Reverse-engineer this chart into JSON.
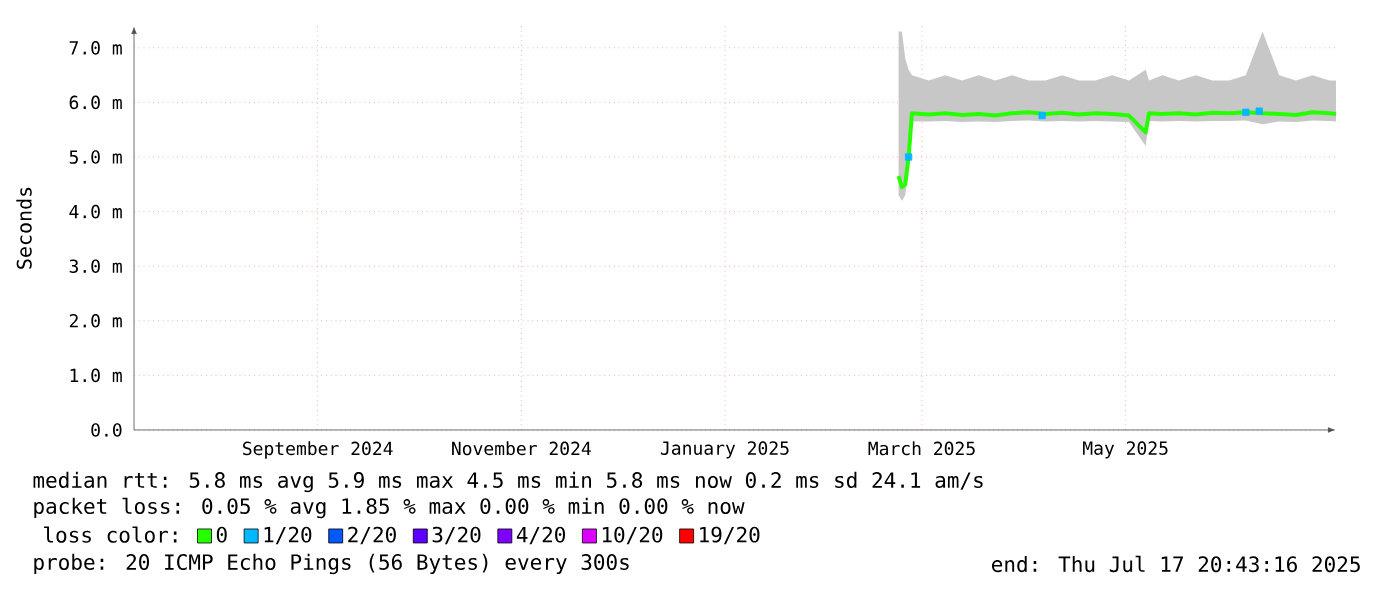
{
  "chart_data": {
    "type": "line",
    "ylabel": "Seconds",
    "legend_title": "loss color:",
    "legend": "bottom",
    "grid": true,
    "xlim": [
      "2024-07-22",
      "2025-07-17"
    ],
    "xticks": [
      {
        "value": "2024-09-15",
        "label": "September 2024"
      },
      {
        "value": "2024-11-15",
        "label": "November 2024"
      },
      {
        "value": "2025-01-15",
        "label": "January 2025"
      },
      {
        "value": "2025-03-15",
        "label": "March 2025"
      },
      {
        "value": "2025-05-15",
        "label": "May 2025"
      }
    ],
    "ylim": [
      0,
      7.4
    ],
    "yticks": [
      {
        "value": 0,
        "label": "0.0"
      },
      {
        "value": 1,
        "label": "1.0 m"
      },
      {
        "value": 2,
        "label": "2.0 m"
      },
      {
        "value": 3,
        "label": "3.0 m"
      },
      {
        "value": 4,
        "label": "4.0 m"
      },
      {
        "value": 5,
        "label": "5.0 m"
      },
      {
        "value": 6,
        "label": "6.0 m"
      },
      {
        "value": 7,
        "label": "7.0 m"
      }
    ],
    "series": [
      {
        "name": "0",
        "color": "#26ff00",
        "marker": "none",
        "line_style": "solid",
        "x": [
          "2025-03-08",
          "2025-03-09",
          "2025-03-10",
          "2025-03-11",
          "2025-03-12",
          "2025-03-17",
          "2025-03-22",
          "2025-03-27",
          "2025-04-01",
          "2025-04-06",
          "2025-04-11",
          "2025-04-16",
          "2025-04-21",
          "2025-04-26",
          "2025-05-01",
          "2025-05-06",
          "2025-05-11",
          "2025-05-16",
          "2025-05-21",
          "2025-05-22",
          "2025-05-26",
          "2025-05-31",
          "2025-06-05",
          "2025-06-10",
          "2025-06-15",
          "2025-06-20",
          "2025-06-25",
          "2025-06-30",
          "2025-07-05",
          "2025-07-10",
          "2025-07-15",
          "2025-07-17"
        ],
        "values": [
          4.65,
          4.45,
          4.5,
          5.0,
          5.8,
          5.78,
          5.8,
          5.77,
          5.79,
          5.76,
          5.8,
          5.82,
          5.79,
          5.81,
          5.78,
          5.8,
          5.79,
          5.76,
          5.45,
          5.8,
          5.79,
          5.8,
          5.78,
          5.81,
          5.8,
          5.82,
          5.8,
          5.79,
          5.77,
          5.82,
          5.8,
          5.79
        ],
        "lower": [
          4.3,
          4.2,
          4.3,
          4.8,
          5.65,
          5.65,
          5.66,
          5.64,
          5.65,
          5.64,
          5.66,
          5.67,
          5.65,
          5.66,
          5.65,
          5.66,
          5.65,
          5.64,
          5.2,
          5.66,
          5.65,
          5.66,
          5.65,
          5.66,
          5.66,
          5.67,
          5.6,
          5.65,
          5.64,
          5.67,
          5.66,
          5.65
        ],
        "upper": [
          7.3,
          7.3,
          6.8,
          6.6,
          6.5,
          6.4,
          6.5,
          6.4,
          6.5,
          6.4,
          6.5,
          6.4,
          6.4,
          6.5,
          6.4,
          6.4,
          6.5,
          6.4,
          6.6,
          6.4,
          6.5,
          6.4,
          6.5,
          6.4,
          6.4,
          6.5,
          7.3,
          6.5,
          6.4,
          6.5,
          6.4,
          6.4
        ]
      },
      {
        "name": "1/20",
        "color": "#00b8ff",
        "type": "scatter",
        "marker": "square",
        "x": [
          "2025-03-11",
          "2025-04-20",
          "2025-06-20",
          "2025-06-24"
        ],
        "values": [
          5.0,
          5.76,
          5.82,
          5.84
        ]
      },
      {
        "name": "2/20",
        "color": "#0059ff",
        "type": "scatter",
        "marker": "square"
      },
      {
        "name": "3/20",
        "color": "#5e00ff",
        "type": "scatter",
        "marker": "square"
      },
      {
        "name": "4/20",
        "color": "#7e00ff",
        "type": "scatter",
        "marker": "square"
      },
      {
        "name": "10/20",
        "color": "#dd00ff",
        "type": "scatter",
        "marker": "square"
      },
      {
        "name": "19/20",
        "color": "#ff0000",
        "type": "scatter",
        "marker": "square"
      }
    ],
    "annotations": [
      "median rtt:  5.8 ms avg  5.9 ms max  4.5 ms min  5.8 ms now  0.2 ms sd  24.1   am/s",
      "packet loss: 0.05 % avg  1.85 % max  0.00 % min  0.00 % now",
      "probe:       20 ICMP Echo Pings (56 Bytes) every 300s",
      "end: Thu Jul 17 20:43:16 2025"
    ]
  }
}
